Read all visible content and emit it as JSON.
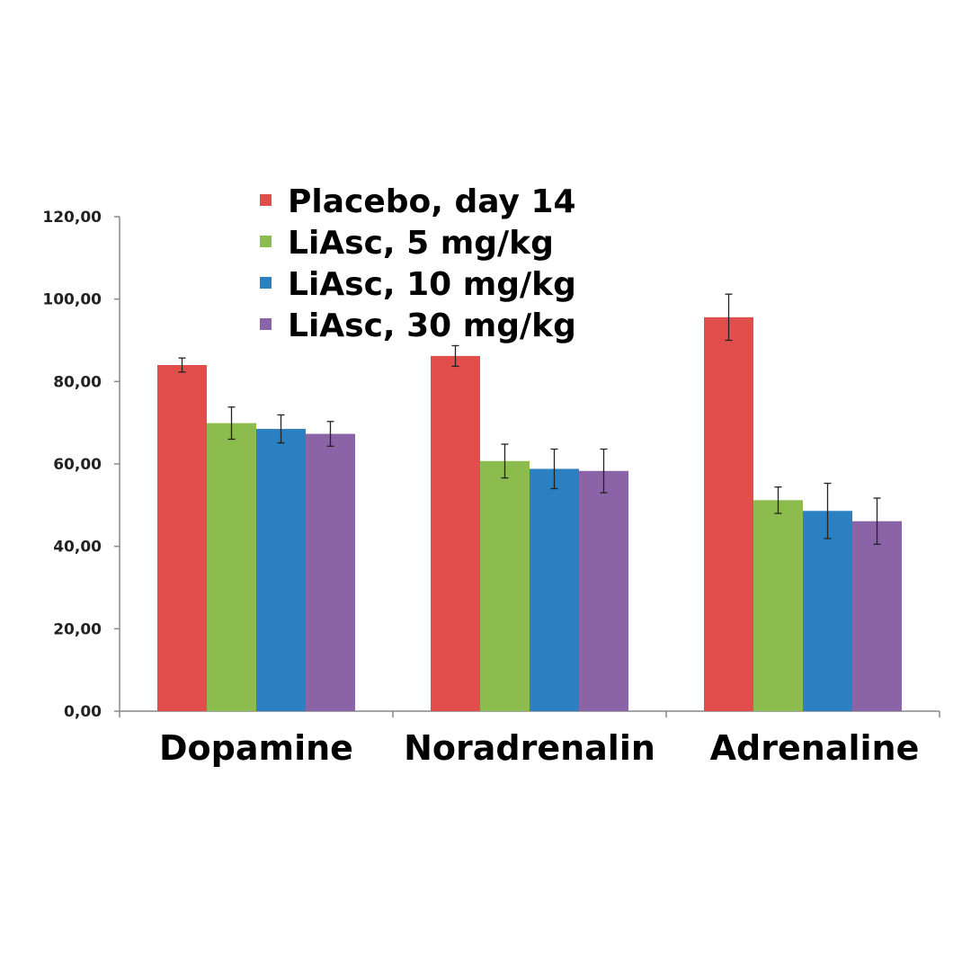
{
  "chart_data": {
    "type": "bar",
    "title": "",
    "xlabel": "",
    "ylabel": "",
    "ylim": [
      0,
      120
    ],
    "yticks": [
      "0,00",
      "20,00",
      "40,00",
      "60,00",
      "80,00",
      "100,00",
      "120,00"
    ],
    "categories": [
      "Dopamine",
      "Noradrenalin",
      "Adrenaline"
    ],
    "legend_position": "top-left",
    "grid": false,
    "series": [
      {
        "name": "Placebo, day 14",
        "color": "#e04f4c",
        "values": [
          84.0,
          86.2,
          95.6
        ],
        "errors": [
          1.7,
          2.5,
          5.6
        ]
      },
      {
        "name": "LiAsc, 5 mg/kg",
        "color": "#8cbb4e",
        "values": [
          69.9,
          60.7,
          51.2
        ],
        "errors": [
          3.9,
          4.1,
          3.2
        ]
      },
      {
        "name": "LiAsc, 10 mg/kg",
        "color": "#2a80c0",
        "values": [
          68.5,
          58.8,
          48.6
        ],
        "errors": [
          3.4,
          4.8,
          6.7
        ]
      },
      {
        "name": "LiAsc, 30 mg/kg",
        "color": "#8a64a6",
        "values": [
          67.3,
          58.3,
          46.1
        ],
        "errors": [
          3.0,
          5.3,
          5.6
        ]
      }
    ]
  }
}
